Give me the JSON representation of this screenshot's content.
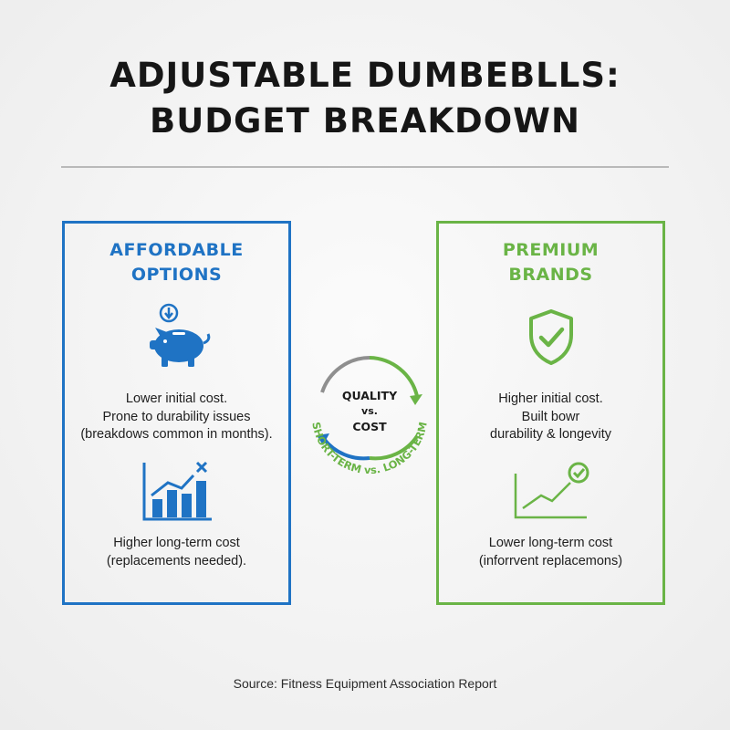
{
  "title": {
    "line1": "ADJUSTABLE DUMBEBLLS:",
    "line2": "BUDGET BREAKDOWN"
  },
  "colors": {
    "blue": "#1f73c4",
    "green": "#6ab446",
    "gray": "#8f8f8f"
  },
  "affordable": {
    "title_line1": "AFFORDABLE",
    "title_line2": "OPTIONS",
    "icon1": "piggy-bank-icon",
    "text1": [
      "Lower initial cost.",
      "Prone to durability issues",
      "(breakdows common in months)."
    ],
    "icon2": "rising-cost-chart-icon",
    "text2": [
      "Higher long-term cost",
      "(replacements needed)."
    ]
  },
  "premium": {
    "title_line1": "PREMIUM",
    "title_line2": "BRANDS",
    "icon1": "shield-check-icon",
    "text1": [
      "Higher initial cost.",
      "Built bowr",
      "durability & longevity"
    ],
    "icon2": "trend-check-icon",
    "text2": [
      "Lower long-term cost",
      "(inforrvent replacemons)"
    ]
  },
  "center": {
    "line1": "QUALITY",
    "line2": "vs.",
    "line3": "COST",
    "arc_label": "SHORT-TERM vs. LONG-TERM",
    "icon": "cycle-arrows-icon"
  },
  "source": "Source: Fitness Equipment Association Report"
}
